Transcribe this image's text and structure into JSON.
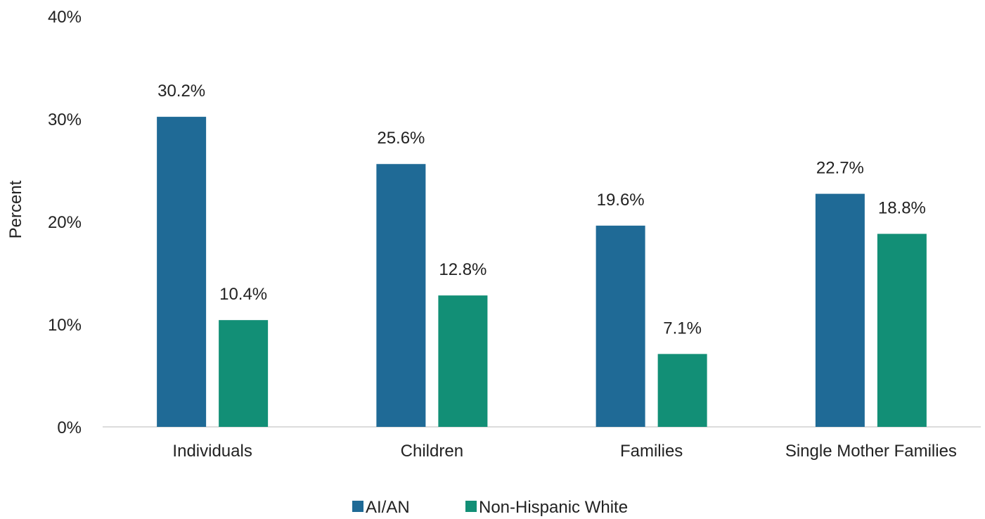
{
  "chart_data": {
    "type": "bar",
    "title": "",
    "xlabel": "",
    "ylabel": "Percent",
    "ylim": [
      0,
      40
    ],
    "yticks": [
      0,
      10,
      20,
      30,
      40
    ],
    "ytick_labels": [
      "0%",
      "10%",
      "20%",
      "30%",
      "40%"
    ],
    "grid": false,
    "legend_position": "bottom",
    "categories": [
      "Individuals",
      "Children",
      "Families",
      "Single Mother Families"
    ],
    "series": [
      {
        "name": "AI/AN",
        "color": "#1f6a96",
        "values": [
          30.2,
          25.6,
          19.6,
          22.7
        ],
        "labels": [
          "30.2%",
          "25.6%",
          "19.6%",
          "22.7%"
        ]
      },
      {
        "name": "Non-Hispanic White",
        "color": "#128f76",
        "values": [
          10.4,
          12.8,
          7.1,
          18.8
        ],
        "labels": [
          "10.4%",
          "12.8%",
          "7.1%",
          "18.8%"
        ]
      }
    ]
  }
}
